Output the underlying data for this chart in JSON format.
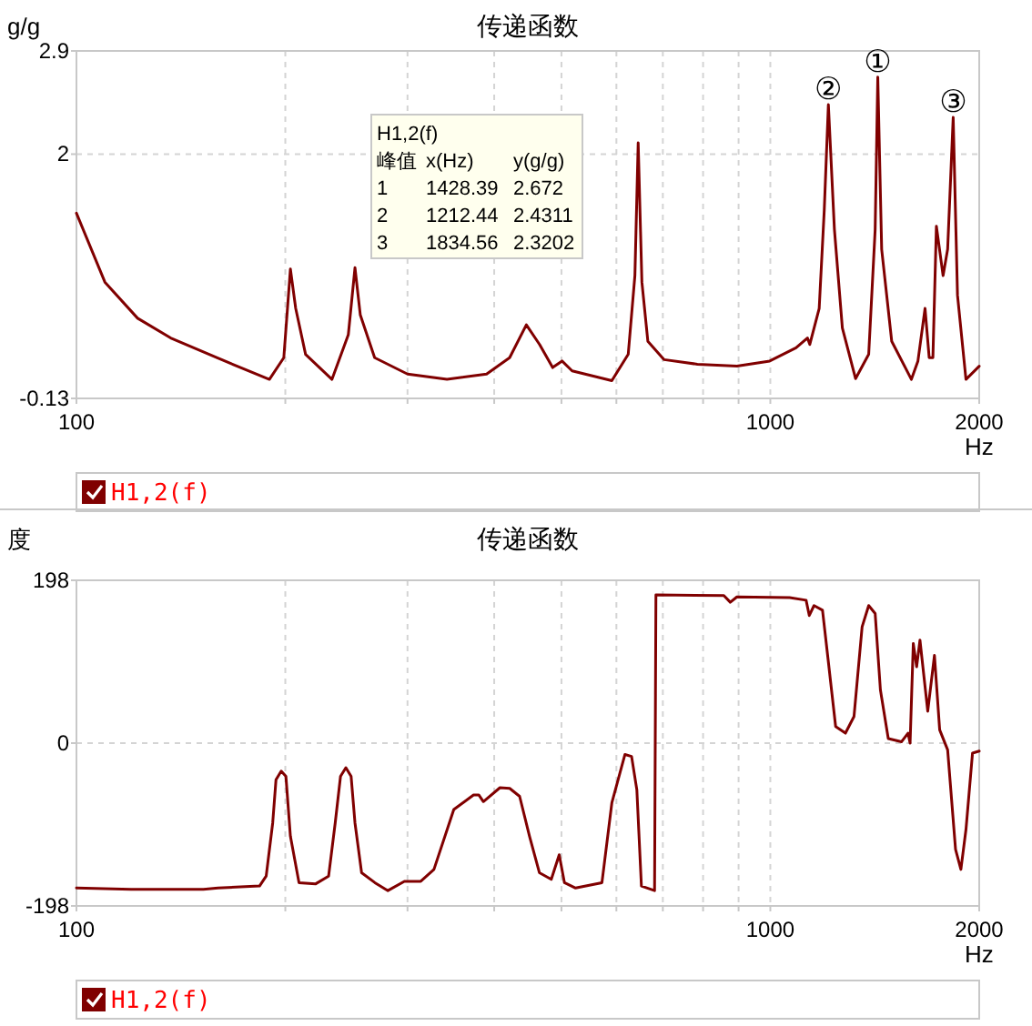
{
  "chart_data": [
    {
      "type": "line",
      "title": "传递函数",
      "xlabel": "Hz",
      "ylabel": "g/g",
      "log": "x",
      "grid": true,
      "legend": "bottom",
      "xlim": [
        100,
        2000
      ],
      "xticks": [
        100,
        {
          "value": 200,
          "label": null
        },
        {
          "value": 300,
          "label": null
        },
        {
          "value": 400,
          "label": null
        },
        {
          "value": 500,
          "label": null
        },
        {
          "value": 600,
          "label": null
        },
        {
          "value": 700,
          "label": null
        },
        {
          "value": 800,
          "label": null
        },
        {
          "value": 900,
          "label": null
        },
        1000,
        2000
      ],
      "ylim": [
        -0.13,
        2.9
      ],
      "yticks": [
        -0.13,
        2,
        2.9
      ],
      "x": [
        100,
        109.9,
        122.5,
        136.7,
        159.3,
        189.7,
        199,
        203.4,
        207,
        213.9,
        233.5,
        246.5,
        252,
        256.5,
        269,
        300,
        342,
        390,
        421,
        445,
        465,
        485.6,
        501,
        518,
        591,
        624,
        638,
        645,
        653,
        666,
        703,
        785,
        895,
        998,
        1089,
        1131,
        1140,
        1176,
        1196,
        1212.44,
        1237,
        1270,
        1327,
        1386,
        1416,
        1428.39,
        1447,
        1496,
        1597,
        1632,
        1671,
        1694,
        1715,
        1735,
        1774,
        1801,
        1834.56,
        1861,
        1914,
        2000
      ],
      "series": [
        {
          "name": "H1,2(f)",
          "color": "#800000",
          "values": [
            1.485,
            0.884,
            0.569,
            0.397,
            0.225,
            0.036,
            0.225,
            0.998,
            0.655,
            0.254,
            0.036,
            0.425,
            1.01,
            0.597,
            0.225,
            0.082,
            0.036,
            0.082,
            0.225,
            0.511,
            0.34,
            0.139,
            0.196,
            0.11,
            0.024,
            0.254,
            0.941,
            2.098,
            0.884,
            0.368,
            0.208,
            0.168,
            0.151,
            0.196,
            0.311,
            0.397,
            0.34,
            0.655,
            1.514,
            2.4311,
            1.342,
            0.483,
            0.042,
            0.254,
            1.342,
            2.672,
            1.17,
            0.368,
            0.036,
            0.196,
            0.655,
            0.225,
            0.225,
            1.371,
            0.941,
            1.17,
            2.3202,
            0.769,
            0.036,
            0.151
          ]
        }
      ],
      "annotations": [
        {
          "text": "①",
          "x": 1428.39,
          "y": 2.672
        },
        {
          "text": "②",
          "x": 1212.44,
          "y": 2.4311
        },
        {
          "text": "③",
          "x": 1834.56,
          "y": 2.3202
        },
        "H1,2(f)",
        "峰值",
        "x(Hz)",
        "y(g/g)",
        "1",
        "1428.39",
        "2.672",
        "2",
        "1212.44",
        "2.4311",
        "3",
        "1834.56",
        "2.3202"
      ]
    },
    {
      "type": "line",
      "title": "传递函数",
      "xlabel": "Hz",
      "ylabel": "度",
      "log": "x",
      "grid": true,
      "legend": "bottom",
      "xlim": [
        100,
        2000
      ],
      "xticks": [
        100,
        {
          "value": 200,
          "label": null
        },
        {
          "value": 300,
          "label": null
        },
        {
          "value": 400,
          "label": null
        },
        {
          "value": 500,
          "label": null
        },
        {
          "value": 600,
          "label": null
        },
        {
          "value": 700,
          "label": null
        },
        {
          "value": 800,
          "label": null
        },
        {
          "value": 900,
          "label": null
        },
        1000,
        2000
      ],
      "ylim": [
        -198,
        198
      ],
      "yticks": [
        -198,
        0,
        198
      ],
      "x": [
        100,
        119.9,
        152.4,
        160,
        183.6,
        187.7,
        191.8,
        193.9,
        197.3,
        200.4,
        203.4,
        209.3,
        221,
        230.9,
        236,
        240.2,
        244.5,
        248.8,
        252,
        257.6,
        269.2,
        281.1,
        296.9,
        313.5,
        327.5,
        349.8,
        373.5,
        380,
        385.9,
        407.7,
        421.1,
        435.2,
        449.7,
        464.7,
        483.4,
        496.3,
        505,
        524,
        571.9,
        591,
        617.3,
        631,
        642.1,
        651.9,
        681,
        684.1,
        857,
        875.6,
        895,
        1066,
        1126,
        1138,
        1156,
        1189,
        1210,
        1242,
        1283,
        1320,
        1356,
        1386,
        1416,
        1441,
        1479,
        1545,
        1579,
        1590,
        1607,
        1625,
        1643,
        1686,
        1724,
        1754,
        1801,
        1849,
        1882,
        1914,
        1956,
        2000
      ],
      "series": [
        {
          "name": "H1,2(f)",
          "color": "#800000",
          "values": [
            -176.2,
            -177.8,
            -177.8,
            -176.2,
            -173.8,
            -161.7,
            -97,
            -44.5,
            -34,
            -40.4,
            -113.2,
            -169.7,
            -171.3,
            -161.7,
            -97,
            -40.4,
            -29.9,
            -40.4,
            -97,
            -157.6,
            -169.7,
            -179.4,
            -168.1,
            -168.1,
            -153.6,
            -80.8,
            -63,
            -63,
            -71.1,
            -54.2,
            -55,
            -64.7,
            -113.2,
            -157.6,
            -165.7,
            -135.8,
            -169.7,
            -176.2,
            -169.7,
            -72.7,
            -13.8,
            -16.2,
            -56.6,
            -173.8,
            -179.4,
            180.2,
            179.4,
            171.3,
            177.8,
            177,
            173.8,
            155.2,
            167.3,
            161.6,
            105.1,
            20.2,
            12.1,
            32.3,
            141.4,
            167.3,
            157.6,
            64.6,
            5.6,
            1.6,
            12.1,
            0,
            121.2,
            92.9,
            125.3,
            38.8,
            106.7,
            16.2,
            -8.1,
            -129.3,
            -153.6,
            -105.1,
            -12.1,
            -9.7
          ]
        }
      ]
    }
  ]
}
